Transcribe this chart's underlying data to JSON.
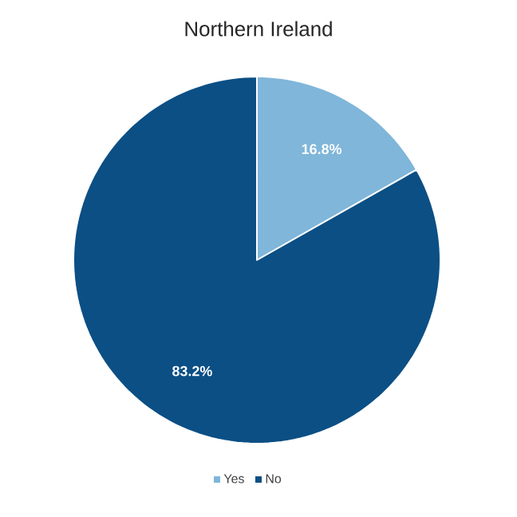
{
  "chart_data": {
    "type": "pie",
    "title": "Northern Ireland",
    "categories": [
      "Yes",
      "No"
    ],
    "values": [
      16.8,
      83.2
    ],
    "colors": [
      "#7fb6da",
      "#0b4f85"
    ],
    "value_labels": [
      "16.8%",
      "83.2%"
    ],
    "legend": "bottom"
  }
}
